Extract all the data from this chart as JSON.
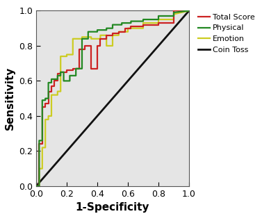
{
  "title": "",
  "xlabel": "1-Specificity",
  "ylabel": "Sensitivity",
  "xlim": [
    0.0,
    1.0
  ],
  "ylim": [
    0.0,
    1.0
  ],
  "bg_color": "#e5e5e5",
  "fig_color": "#ffffff",
  "legend_labels": [
    "Total Score",
    "Physical",
    "Emotion",
    "Coin Toss"
  ],
  "legend_colors": [
    "#cc2222",
    "#228822",
    "#cccc22",
    "#111111"
  ],
  "total_score_x": [
    0.0,
    0.02,
    0.02,
    0.04,
    0.04,
    0.06,
    0.06,
    0.08,
    0.08,
    0.1,
    0.1,
    0.12,
    0.12,
    0.14,
    0.14,
    0.16,
    0.16,
    0.2,
    0.2,
    0.24,
    0.24,
    0.28,
    0.28,
    0.32,
    0.32,
    0.36,
    0.36,
    0.4,
    0.4,
    0.42,
    0.42,
    0.46,
    0.46,
    0.5,
    0.5,
    0.54,
    0.54,
    0.58,
    0.58,
    0.62,
    0.62,
    0.7,
    0.7,
    0.8,
    0.8,
    0.9,
    0.9,
    1.0
  ],
  "total_score_y": [
    0.0,
    0.0,
    0.24,
    0.24,
    0.45,
    0.45,
    0.47,
    0.47,
    0.54,
    0.54,
    0.57,
    0.57,
    0.6,
    0.6,
    0.64,
    0.64,
    0.65,
    0.65,
    0.66,
    0.66,
    0.67,
    0.67,
    0.78,
    0.78,
    0.8,
    0.8,
    0.67,
    0.67,
    0.8,
    0.8,
    0.84,
    0.84,
    0.86,
    0.86,
    0.87,
    0.87,
    0.88,
    0.88,
    0.9,
    0.9,
    0.91,
    0.91,
    0.92,
    0.92,
    0.93,
    0.93,
    1.0,
    1.0
  ],
  "physical_x": [
    0.0,
    0.02,
    0.02,
    0.04,
    0.04,
    0.06,
    0.06,
    0.08,
    0.08,
    0.1,
    0.1,
    0.14,
    0.14,
    0.16,
    0.16,
    0.18,
    0.18,
    0.22,
    0.22,
    0.26,
    0.26,
    0.3,
    0.3,
    0.34,
    0.34,
    0.4,
    0.4,
    0.46,
    0.46,
    0.5,
    0.5,
    0.56,
    0.56,
    0.62,
    0.62,
    0.7,
    0.7,
    0.8,
    0.8,
    0.9,
    0.9,
    1.0
  ],
  "physical_y": [
    0.0,
    0.0,
    0.26,
    0.26,
    0.49,
    0.49,
    0.5,
    0.5,
    0.59,
    0.59,
    0.61,
    0.61,
    0.63,
    0.63,
    0.65,
    0.65,
    0.6,
    0.6,
    0.63,
    0.63,
    0.67,
    0.67,
    0.84,
    0.84,
    0.88,
    0.88,
    0.89,
    0.89,
    0.9,
    0.9,
    0.92,
    0.92,
    0.93,
    0.93,
    0.94,
    0.94,
    0.95,
    0.95,
    0.97,
    0.97,
    0.99,
    1.0
  ],
  "emotion_x": [
    0.0,
    0.02,
    0.02,
    0.04,
    0.04,
    0.06,
    0.06,
    0.08,
    0.08,
    0.1,
    0.1,
    0.14,
    0.14,
    0.16,
    0.16,
    0.2,
    0.2,
    0.24,
    0.24,
    0.3,
    0.3,
    0.36,
    0.36,
    0.42,
    0.42,
    0.46,
    0.46,
    0.5,
    0.5,
    0.54,
    0.54,
    0.6,
    0.6,
    0.7,
    0.7,
    0.8,
    0.8,
    0.9,
    0.9,
    1.0
  ],
  "emotion_y": [
    0.0,
    0.0,
    0.1,
    0.1,
    0.22,
    0.22,
    0.38,
    0.38,
    0.4,
    0.4,
    0.52,
    0.52,
    0.54,
    0.54,
    0.74,
    0.74,
    0.75,
    0.75,
    0.84,
    0.84,
    0.85,
    0.85,
    0.84,
    0.84,
    0.86,
    0.86,
    0.8,
    0.8,
    0.86,
    0.86,
    0.88,
    0.88,
    0.9,
    0.9,
    0.93,
    0.93,
    0.95,
    0.95,
    0.98,
    1.0
  ],
  "xticks": [
    0.0,
    0.2,
    0.4,
    0.6,
    0.8,
    1.0
  ],
  "yticks": [
    0.0,
    0.2,
    0.4,
    0.6,
    0.8,
    1.0
  ],
  "xlabel_fontsize": 11,
  "ylabel_fontsize": 11,
  "legend_fontsize": 8,
  "linewidth_roc": 1.6,
  "linewidth_diag": 2.0
}
